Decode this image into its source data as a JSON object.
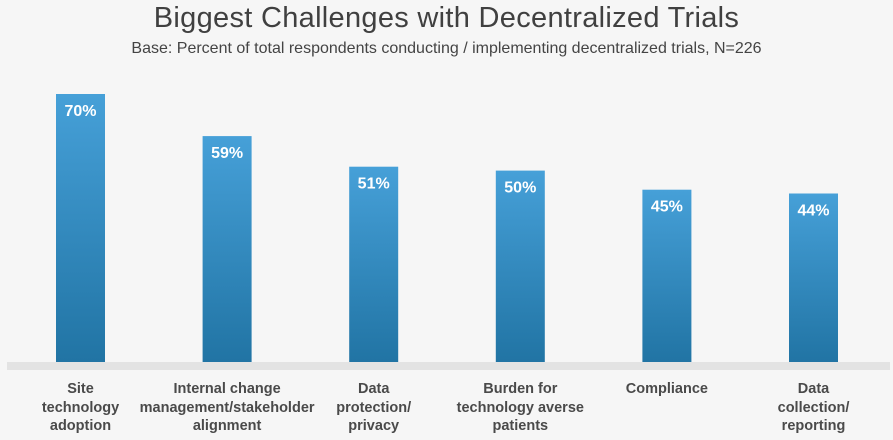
{
  "chart_data": {
    "type": "bar",
    "title": "Biggest Challenges with Decentralized Trials",
    "subtitle": "Base: Percent of total respondents conducting / implementing decentralized trials, N=226",
    "categories": [
      "Site technology adoption",
      "Internal change management/stakeholder alignment",
      "Data protection/ privacy",
      "Burden for technology averse patients",
      "Compliance",
      "Data collection/ reporting"
    ],
    "category_lines": [
      [
        "Site",
        "technology",
        "adoption"
      ],
      [
        "Internal change",
        "management/stakeholder",
        "alignment"
      ],
      [
        "Data",
        "protection/",
        "privacy"
      ],
      [
        "Burden for",
        "technology averse",
        "patients"
      ],
      [
        "Compliance"
      ],
      [
        "Data",
        "collection/",
        "reporting"
      ]
    ],
    "values": [
      70,
      59,
      51,
      50,
      45,
      44
    ],
    "data_labels": [
      "70%",
      "59%",
      "51%",
      "50%",
      "45%",
      "44%"
    ],
    "unit": "%",
    "xlabel": "",
    "ylabel": "",
    "ylim": [
      0,
      100
    ],
    "grid": false,
    "legend": "none",
    "colors": {
      "bar_top": "#46a0d8",
      "bar_bottom": "#2174a4",
      "baseline": "#e3e3e3",
      "label_text": "#ffffff"
    }
  }
}
